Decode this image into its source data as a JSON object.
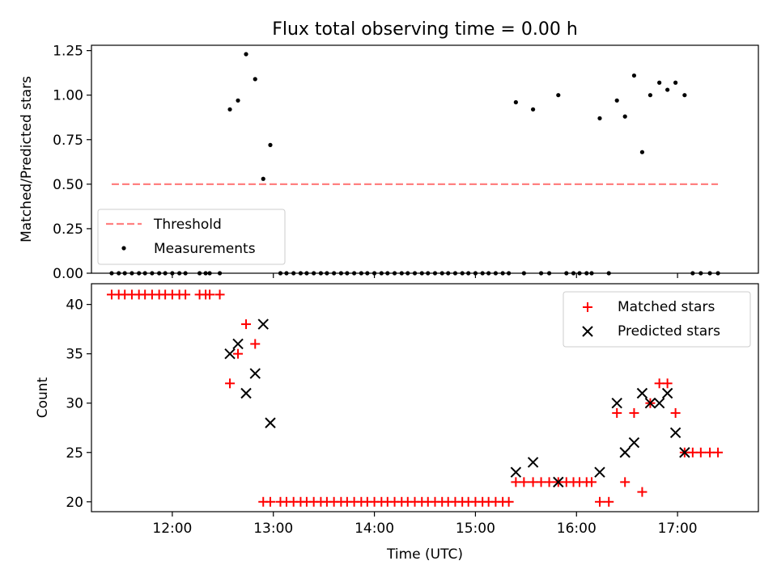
{
  "figure": {
    "title": "Flux total observing time = 0.00 h",
    "xlabel": "Time (UTC)"
  },
  "colors": {
    "threshold": "#ff8080",
    "matched": "#ff0000",
    "predicted": "#000000",
    "measurements": "#000000"
  },
  "chart_data": [
    {
      "type": "scatter",
      "ylabel": "Matched/Predicted stars",
      "xlim": [
        11.2,
        17.8
      ],
      "ylim": [
        0,
        1.28
      ],
      "xticks": [
        12,
        13,
        14,
        15,
        16,
        17
      ],
      "yticks": [
        0,
        0.25,
        0.5,
        0.75,
        1.0,
        1.25
      ],
      "yticklabels": [
        "0.00",
        "0.25",
        "0.50",
        "0.75",
        "1.00",
        "1.25"
      ],
      "legend_position": "lower-left",
      "series": [
        {
          "name": "Threshold",
          "kind": "line",
          "style": "dashed",
          "x": [
            11.4,
            17.4
          ],
          "y": [
            0.5,
            0.5
          ]
        },
        {
          "name": "Measurements",
          "kind": "scatter",
          "x": [
            11.4,
            11.47,
            11.53,
            11.6,
            11.67,
            11.73,
            11.8,
            11.87,
            11.93,
            12.0,
            12.07,
            12.13,
            12.27,
            12.33,
            12.37,
            12.47,
            12.57,
            12.65,
            12.73,
            12.82,
            12.9,
            12.97,
            13.07,
            13.13,
            13.2,
            13.27,
            13.33,
            13.4,
            13.47,
            13.53,
            13.6,
            13.67,
            13.73,
            13.8,
            13.87,
            13.93,
            14.0,
            14.07,
            14.13,
            14.2,
            14.27,
            14.33,
            14.4,
            14.47,
            14.53,
            14.6,
            14.67,
            14.73,
            14.8,
            14.87,
            14.93,
            15.0,
            15.07,
            15.13,
            15.2,
            15.27,
            15.33,
            15.4,
            15.48,
            15.57,
            15.65,
            15.73,
            15.82,
            15.9,
            15.97,
            16.03,
            16.1,
            16.15,
            16.23,
            16.32,
            16.4,
            16.48,
            16.57,
            16.65,
            16.73,
            16.82,
            16.9,
            16.98,
            17.07,
            17.15,
            17.23,
            17.32,
            17.4
          ],
          "y": [
            0,
            0,
            0,
            0,
            0,
            0,
            0,
            0,
            0,
            0,
            0,
            0,
            0,
            0,
            0,
            0,
            0.92,
            0.97,
            1.23,
            1.09,
            0.53,
            0.72,
            0,
            0,
            0,
            0,
            0,
            0,
            0,
            0,
            0,
            0,
            0,
            0,
            0,
            0,
            0,
            0,
            0,
            0,
            0,
            0,
            0,
            0,
            0,
            0,
            0,
            0,
            0,
            0,
            0,
            0,
            0,
            0,
            0,
            0,
            0,
            0.96,
            0,
            0.92,
            0,
            0,
            1.0,
            0,
            0,
            0,
            0,
            0,
            0.87,
            0,
            0.97,
            0.88,
            1.11,
            0.68,
            1.0,
            1.07,
            1.03,
            1.07,
            1.0,
            0,
            0,
            0,
            0
          ]
        }
      ]
    },
    {
      "type": "scatter",
      "ylabel": "Count",
      "xlim": [
        11.2,
        17.8
      ],
      "ylim": [
        19,
        42.1
      ],
      "xticks": [
        12,
        13,
        14,
        15,
        16,
        17
      ],
      "xticklabels": [
        "12:00",
        "13:00",
        "14:00",
        "15:00",
        "16:00",
        "17:00"
      ],
      "yticks": [
        20,
        25,
        30,
        35,
        40
      ],
      "yticklabels": [
        "20",
        "25",
        "30",
        "35",
        "40"
      ],
      "legend_position": "upper-right",
      "series": [
        {
          "name": "Matched stars",
          "marker": "plus",
          "x": [
            11.4,
            11.47,
            11.53,
            11.6,
            11.67,
            11.73,
            11.8,
            11.87,
            11.93,
            12.0,
            12.07,
            12.13,
            12.27,
            12.33,
            12.37,
            12.47,
            12.57,
            12.65,
            12.73,
            12.82,
            12.9,
            12.97,
            13.07,
            13.13,
            13.2,
            13.27,
            13.33,
            13.4,
            13.47,
            13.53,
            13.6,
            13.67,
            13.73,
            13.8,
            13.87,
            13.93,
            14.0,
            14.07,
            14.13,
            14.2,
            14.27,
            14.33,
            14.4,
            14.47,
            14.53,
            14.6,
            14.67,
            14.73,
            14.8,
            14.87,
            14.93,
            15.0,
            15.07,
            15.13,
            15.2,
            15.27,
            15.33,
            15.4,
            15.48,
            15.57,
            15.65,
            15.73,
            15.82,
            15.9,
            15.97,
            16.03,
            16.1,
            16.15,
            16.23,
            16.32,
            16.4,
            16.48,
            16.57,
            16.65,
            16.73,
            16.82,
            16.9,
            16.98,
            17.07,
            17.15,
            17.23,
            17.32,
            17.4
          ],
          "y": [
            41,
            41,
            41,
            41,
            41,
            41,
            41,
            41,
            41,
            41,
            41,
            41,
            41,
            41,
            41,
            41,
            32,
            35,
            38,
            36,
            20,
            20,
            20,
            20,
            20,
            20,
            20,
            20,
            20,
            20,
            20,
            20,
            20,
            20,
            20,
            20,
            20,
            20,
            20,
            20,
            20,
            20,
            20,
            20,
            20,
            20,
            20,
            20,
            20,
            20,
            20,
            20,
            20,
            20,
            20,
            20,
            20,
            22,
            22,
            22,
            22,
            22,
            22,
            22,
            22,
            22,
            22,
            22,
            20,
            20,
            29,
            22,
            29,
            21,
            30,
            32,
            32,
            29,
            25,
            25,
            25,
            25,
            25
          ]
        },
        {
          "name": "Predicted stars",
          "marker": "x",
          "x": [
            12.57,
            12.65,
            12.73,
            12.82,
            12.9,
            12.97,
            15.4,
            15.57,
            15.82,
            16.23,
            16.4,
            16.48,
            16.57,
            16.65,
            16.73,
            16.82,
            16.9,
            16.98,
            17.07
          ],
          "y": [
            35,
            36,
            31,
            33,
            38,
            28,
            23,
            24,
            22,
            23,
            30,
            25,
            26,
            31,
            30,
            30,
            31,
            27,
            25
          ]
        }
      ]
    }
  ]
}
